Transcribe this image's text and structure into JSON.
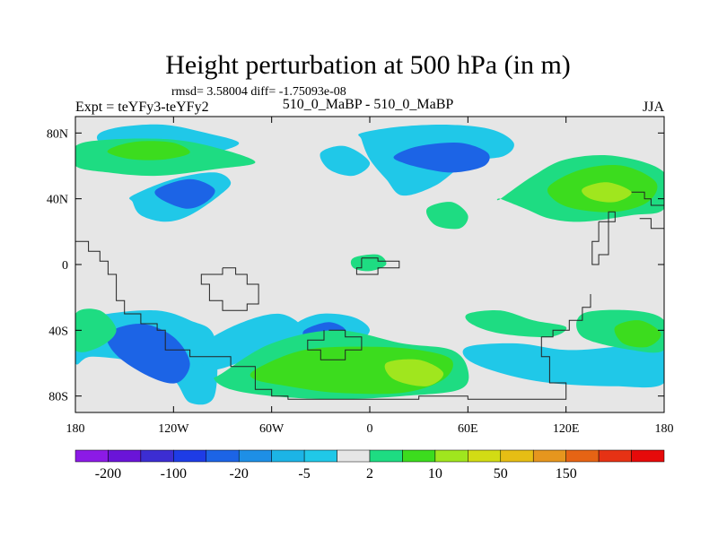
{
  "chart_data": {
    "type": "heatmap",
    "title": "Height perturbation at 500 hPa (in m)",
    "subtitle_stats": "rmsd= 3.58004 diff= -1.75093e-08",
    "left_label": "Expt = teYFy3-teYFy2",
    "center_label": "510_0_MaBP - 510_0_MaBP",
    "right_label": "JJA",
    "x_ticks": [
      "180",
      "120W",
      "60W",
      "0",
      "60E",
      "120E",
      "180"
    ],
    "y_ticks": [
      "80N",
      "40N",
      "0",
      "40S",
      "80S"
    ],
    "xlim": [
      -180,
      180
    ],
    "ylim": [
      -90,
      90
    ],
    "colorbar": {
      "colors": [
        "#8c1ae6",
        "#6a14d8",
        "#3c2dd2",
        "#1e3ce6",
        "#1c64e6",
        "#1e8fe6",
        "#1cb4e6",
        "#20c8e8",
        "#e6e6e6",
        "#1edc82",
        "#3cdc1e",
        "#a0e61e",
        "#d2dc14",
        "#e6be14",
        "#e6961e",
        "#e66414",
        "#e63214",
        "#e60a0a"
      ],
      "labels": [
        "-200",
        "-100",
        "-20",
        "-5",
        "2",
        "10",
        "50",
        "150"
      ]
    },
    "regions": [
      {
        "level": -5,
        "lon": [
          -165,
          -150,
          -125,
          -100,
          -80,
          -95,
          -120,
          -150,
          -165
        ],
        "lat": [
          80,
          84,
          85,
          80,
          74,
          68,
          64,
          66,
          74
        ]
      },
      {
        "level": 2,
        "lon": [
          -180,
          -160,
          -120,
          -90,
          -70,
          -95,
          -130,
          -160,
          -180
        ],
        "lat": [
          72,
          76,
          76,
          70,
          62,
          58,
          54,
          56,
          60
        ]
      },
      {
        "level": 10,
        "lon": [
          -155,
          -140,
          -120,
          -110,
          -125,
          -145,
          -160
        ],
        "lat": [
          72,
          75,
          74,
          68,
          64,
          64,
          68
        ]
      },
      {
        "level": -5,
        "lon": [
          -145,
          -120,
          -95,
          -85,
          -92,
          -110,
          -125,
          -140,
          -145
        ],
        "lat": [
          42,
          52,
          56,
          50,
          42,
          30,
          26,
          30,
          38
        ]
      },
      {
        "level": -20,
        "lon": [
          -130,
          -110,
          -95,
          -100,
          -112,
          -128
        ],
        "lat": [
          46,
          52,
          46,
          38,
          34,
          40
        ]
      },
      {
        "level": -5,
        "lon": [
          -5,
          20,
          50,
          75,
          88,
          82,
          60,
          40,
          20,
          10,
          0,
          -5
        ],
        "lat": [
          80,
          84,
          85,
          82,
          74,
          66,
          62,
          48,
          42,
          52,
          64,
          76
        ]
      },
      {
        "level": -20,
        "lon": [
          15,
          30,
          55,
          72,
          70,
          52,
          35,
          20
        ],
        "lat": [
          66,
          72,
          74,
          68,
          60,
          56,
          58,
          62
        ]
      },
      {
        "level": -5,
        "lon": [
          -30,
          -15,
          0,
          -10,
          -25
        ],
        "lat": [
          68,
          72,
          62,
          54,
          58
        ]
      },
      {
        "level": 2,
        "lon": [
          80,
          100,
          120,
          150,
          180,
          180,
          160,
          130,
          110,
          95,
          80
        ],
        "lat": [
          40,
          54,
          64,
          66,
          56,
          34,
          30,
          26,
          28,
          34,
          40
        ]
      },
      {
        "level": 10,
        "lon": [
          110,
          130,
          155,
          175,
          170,
          150,
          125,
          112
        ],
        "lat": [
          48,
          58,
          60,
          50,
          38,
          32,
          34,
          40
        ]
      },
      {
        "level": 50,
        "lon": [
          130,
          145,
          160,
          150,
          135
        ],
        "lat": [
          46,
          50,
          44,
          38,
          40
        ]
      },
      {
        "level": 2,
        "lon": [
          35,
          50,
          60,
          55,
          40
        ],
        "lat": [
          34,
          38,
          30,
          22,
          24
        ]
      },
      {
        "level": 2,
        "lon": [
          -10,
          5,
          10,
          0,
          -10
        ],
        "lat": [
          4,
          6,
          0,
          -4,
          -2
        ]
      },
      {
        "level": -5,
        "lon": [
          -180,
          -160,
          -130,
          -110,
          -95,
          -95,
          -110,
          -120,
          -140,
          -170,
          -180
        ],
        "lat": [
          -36,
          -30,
          -28,
          -34,
          -44,
          -80,
          -84,
          -70,
          -60,
          -56,
          -60
        ]
      },
      {
        "level": -20,
        "lon": [
          -160,
          -140,
          -120,
          -110,
          -118,
          -135,
          -155
        ],
        "lat": [
          -42,
          -36,
          -44,
          -60,
          -72,
          -68,
          -55
        ]
      },
      {
        "level": 2,
        "lon": [
          -180,
          -165,
          -155,
          -165,
          -180
        ],
        "lat": [
          -30,
          -28,
          -40,
          -50,
          -52
        ]
      },
      {
        "level": -5,
        "lon": [
          -105,
          -80,
          -55,
          -40,
          -50,
          -75,
          -95,
          -105
        ],
        "lat": [
          -50,
          -36,
          -30,
          -40,
          -50,
          -58,
          -64,
          -58
        ]
      },
      {
        "level": -5,
        "lon": [
          -45,
          -30,
          -10,
          0,
          -10,
          -30,
          -42
        ],
        "lat": [
          -36,
          -30,
          -32,
          -40,
          -48,
          -48,
          -42
        ]
      },
      {
        "level": -20,
        "lon": [
          -40,
          -25,
          -15,
          -25,
          -38
        ],
        "lat": [
          -40,
          -35,
          -40,
          -46,
          -46
        ]
      },
      {
        "level": 2,
        "lon": [
          -90,
          -60,
          -20,
          20,
          50,
          60,
          55,
          20,
          -20,
          -60,
          -85,
          -95
        ],
        "lat": [
          -66,
          -48,
          -40,
          -48,
          -52,
          -64,
          -76,
          -80,
          -82,
          -80,
          -76,
          -70
        ]
      },
      {
        "level": 10,
        "lon": [
          -70,
          -40,
          0,
          30,
          50,
          45,
          20,
          -20,
          -50,
          -70
        ],
        "lat": [
          -64,
          -52,
          -50,
          -52,
          -58,
          -70,
          -78,
          -78,
          -74,
          -70
        ]
      },
      {
        "level": 50,
        "lon": [
          10,
          30,
          45,
          35,
          15
        ],
        "lat": [
          -60,
          -58,
          -66,
          -74,
          -70
        ]
      },
      {
        "level": -5,
        "lon": [
          60,
          90,
          120,
          150,
          180,
          180,
          150,
          110,
          80,
          60
        ],
        "lat": [
          -50,
          -48,
          -52,
          -50,
          -46,
          -72,
          -74,
          -72,
          -66,
          -58
        ]
      },
      {
        "level": 2,
        "lon": [
          130,
          160,
          180,
          180,
          160,
          130
        ],
        "lat": [
          -30,
          -28,
          -34,
          -52,
          -52,
          -44
        ]
      },
      {
        "level": 10,
        "lon": [
          150,
          165,
          178,
          170,
          155
        ],
        "lat": [
          -38,
          -34,
          -42,
          -50,
          -48
        ]
      },
      {
        "level": 2,
        "lon": [
          60,
          80,
          100,
          120,
          110,
          80,
          62
        ],
        "lat": [
          -30,
          -28,
          -34,
          -38,
          -44,
          -42,
          -36
        ]
      }
    ]
  }
}
